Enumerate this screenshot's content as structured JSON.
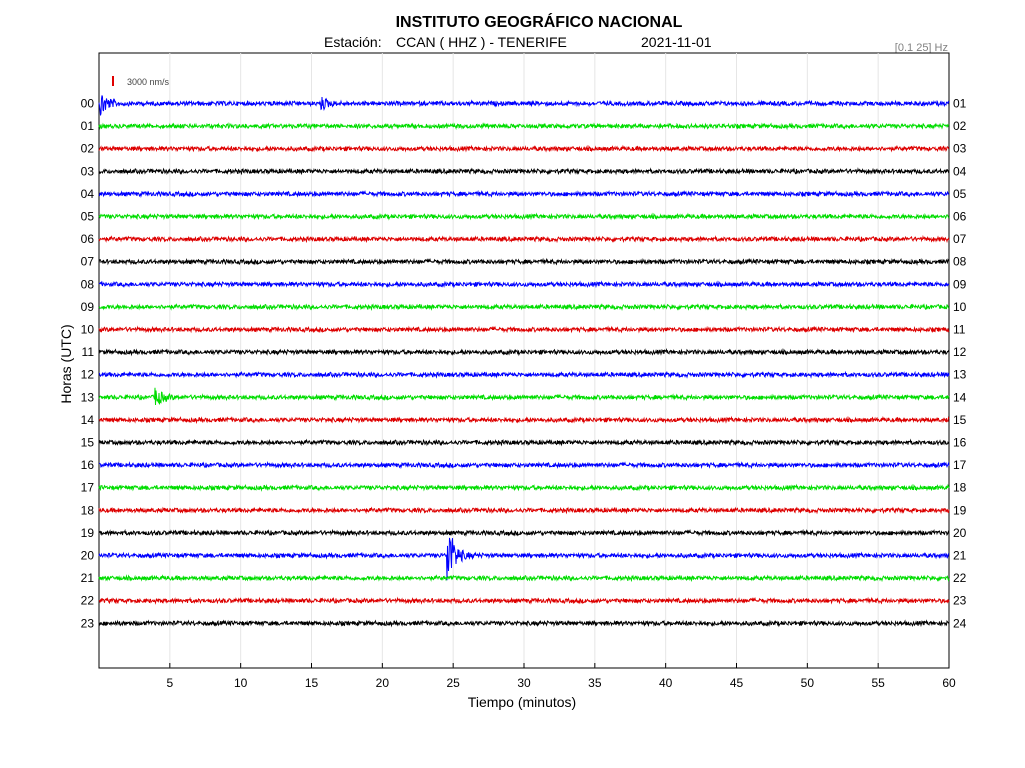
{
  "header": {
    "title": "INSTITUTO GEOGRÁFICO NACIONAL",
    "station_label": "Estación:",
    "station": "CCAN ( HHZ ) - TENERIFE",
    "date": "2021-11-01",
    "filter": "[0.1 25] Hz"
  },
  "scale_bar": {
    "label": "3000 nm/s",
    "color": "#e00000"
  },
  "chart_data": {
    "type": "line",
    "subtype": "helicorder",
    "xlabel": "Tiempo (minutos)",
    "ylabel": "Horas (UTC)",
    "xlim": [
      0,
      60
    ],
    "xticks": [
      5,
      10,
      15,
      20,
      25,
      30,
      35,
      40,
      45,
      50,
      55,
      60
    ],
    "xtick_labels": [
      "5",
      "10",
      "15",
      "20",
      "25",
      "30",
      "35",
      "40",
      "45",
      "50",
      "55",
      "60"
    ],
    "left_labels": [
      "00",
      "01",
      "02",
      "03",
      "04",
      "05",
      "06",
      "07",
      "08",
      "09",
      "10",
      "11",
      "12",
      "13",
      "14",
      "15",
      "16",
      "17",
      "18",
      "19",
      "20",
      "21",
      "22",
      "23"
    ],
    "right_labels": [
      "01",
      "02",
      "03",
      "04",
      "05",
      "06",
      "07",
      "08",
      "09",
      "10",
      "11",
      "12",
      "13",
      "14",
      "15",
      "16",
      "17",
      "18",
      "19",
      "20",
      "21",
      "22",
      "23",
      "24"
    ],
    "color_cycle": [
      "#0000ff",
      "#00dd00",
      "#dd0000",
      "#000000"
    ],
    "grid": true,
    "events": [
      {
        "hour_index": 0,
        "minute": 0.1,
        "amplitude": "medium"
      },
      {
        "hour_index": 0,
        "minute": 15.7,
        "amplitude": "small"
      },
      {
        "hour_index": 13,
        "minute": 4.0,
        "amplitude": "small-medium"
      },
      {
        "hour_index": 20,
        "minute": 24.6,
        "amplitude": "large"
      }
    ]
  }
}
